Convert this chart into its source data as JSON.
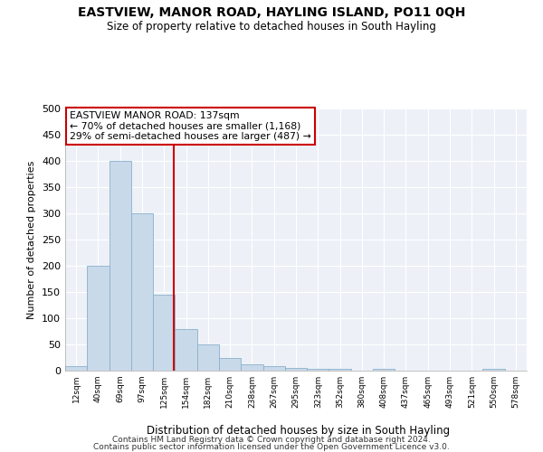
{
  "title": "EASTVIEW, MANOR ROAD, HAYLING ISLAND, PO11 0QH",
  "subtitle": "Size of property relative to detached houses in South Hayling",
  "xlabel": "Distribution of detached houses by size in South Hayling",
  "ylabel": "Number of detached properties",
  "footnote1": "Contains HM Land Registry data © Crown copyright and database right 2024.",
  "footnote2": "Contains public sector information licensed under the Open Government Licence v3.0.",
  "annotation_title": "EASTVIEW MANOR ROAD: 137sqm",
  "annotation_line1": "← 70% of detached houses are smaller (1,168)",
  "annotation_line2": "29% of semi-detached houses are larger (487) →",
  "bar_color": "#c8d9ea",
  "bar_edge_color": "#8ab0cc",
  "vline_color": "#cc0000",
  "annotation_box_edge_color": "#cc0000",
  "categories": [
    "12sqm",
    "40sqm",
    "69sqm",
    "97sqm",
    "125sqm",
    "154sqm",
    "182sqm",
    "210sqm",
    "238sqm",
    "267sqm",
    "295sqm",
    "323sqm",
    "352sqm",
    "380sqm",
    "408sqm",
    "437sqm",
    "465sqm",
    "493sqm",
    "521sqm",
    "550sqm",
    "578sqm"
  ],
  "values": [
    8,
    200,
    400,
    300,
    145,
    80,
    50,
    25,
    12,
    8,
    5,
    4,
    4,
    0,
    3,
    0,
    0,
    0,
    0,
    3,
    0
  ],
  "ylim": [
    0,
    500
  ],
  "yticks": [
    0,
    50,
    100,
    150,
    200,
    250,
    300,
    350,
    400,
    450,
    500
  ],
  "vline_x_index": 3.55,
  "bg_color": "#edf1f7"
}
